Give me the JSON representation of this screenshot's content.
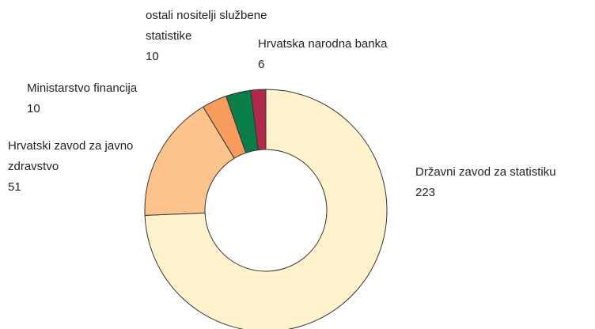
{
  "chart_data": {
    "type": "donut",
    "categories": [
      "Državni zavod za statistiku",
      "Hrvatski zavod za javno zdravstvo",
      "Ministarstvo financija",
      "ostali nositelji službene statistike",
      "Hrvatska narodna banka"
    ],
    "values": [
      223,
      51,
      10,
      10,
      6
    ],
    "colors": [
      "#fff2cc",
      "#fcc48c",
      "#f79c5c",
      "#0a7e48",
      "#b02a4c"
    ]
  }
}
